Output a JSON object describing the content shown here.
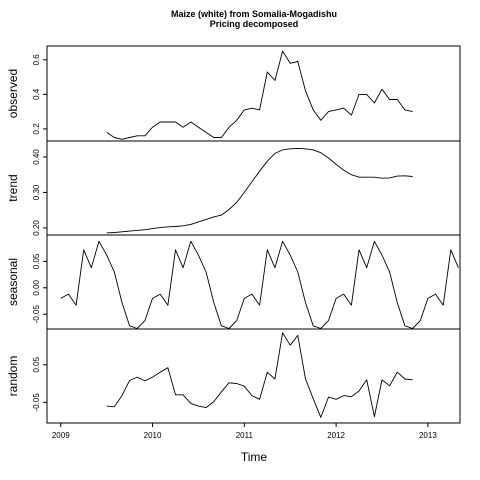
{
  "title_line1": "Maize (white) from Somalia-Mogadishu",
  "title_line2": "Pricing decomposed",
  "xlabel": "Time",
  "chart_data": {
    "type": "line",
    "title": "Maize (white) from Somalia-Mogadishu\nPricing decomposed",
    "xlabel": "Time",
    "xlim": [
      2008.85,
      2013.35
    ],
    "xticks": [
      2009,
      2010,
      2011,
      2012,
      2013
    ],
    "xtick_labels": [
      "2009",
      "2010",
      "2011",
      "2012",
      "2013"
    ],
    "grid": false,
    "panels": [
      {
        "name": "observed",
        "ylabel": "observed",
        "ylim": [
          0.13,
          0.68
        ],
        "yticks": [
          0.2,
          0.4,
          0.6
        ],
        "ytick_labels": [
          "0.2",
          "0.4",
          "0.6"
        ],
        "x": [
          2009.5,
          2009.583,
          2009.667,
          2009.75,
          2009.833,
          2009.917,
          2010.0,
          2010.083,
          2010.167,
          2010.25,
          2010.333,
          2010.417,
          2010.5,
          2010.583,
          2010.667,
          2010.75,
          2010.833,
          2010.917,
          2011.0,
          2011.083,
          2011.167,
          2011.25,
          2011.333,
          2011.417,
          2011.5,
          2011.583,
          2011.667,
          2011.75,
          2011.833,
          2011.917,
          2012.0,
          2012.083,
          2012.167,
          2012.25,
          2012.333,
          2012.417,
          2012.5,
          2012.583,
          2012.667,
          2012.75,
          2012.833
        ],
        "values": [
          0.18,
          0.15,
          0.14,
          0.15,
          0.16,
          0.16,
          0.21,
          0.24,
          0.24,
          0.24,
          0.21,
          0.24,
          0.21,
          0.18,
          0.15,
          0.15,
          0.21,
          0.25,
          0.31,
          0.32,
          0.31,
          0.53,
          0.48,
          0.65,
          0.58,
          0.59,
          0.42,
          0.31,
          0.25,
          0.3,
          0.31,
          0.32,
          0.28,
          0.4,
          0.4,
          0.35,
          0.43,
          0.37,
          0.37,
          0.31,
          0.3
        ]
      },
      {
        "name": "trend",
        "ylabel": "trend",
        "ylim": [
          0.18,
          0.445
        ],
        "yticks": [
          0.2,
          0.3,
          0.4
        ],
        "ytick_labels": [
          "0.20",
          "0.30",
          "0.40"
        ],
        "x": [
          2009.5,
          2009.583,
          2009.667,
          2009.75,
          2009.833,
          2009.917,
          2010.0,
          2010.083,
          2010.167,
          2010.25,
          2010.333,
          2010.417,
          2010.5,
          2010.583,
          2010.667,
          2010.75,
          2010.833,
          2010.917,
          2011.0,
          2011.083,
          2011.167,
          2011.25,
          2011.333,
          2011.417,
          2011.5,
          2011.583,
          2011.667,
          2011.75,
          2011.833,
          2011.917,
          2012.0,
          2012.083,
          2012.167,
          2012.25,
          2012.333,
          2012.417,
          2012.5,
          2012.583,
          2012.667,
          2012.75,
          2012.833
        ],
        "values": [
          0.186,
          0.187,
          0.189,
          0.191,
          0.193,
          0.195,
          0.198,
          0.201,
          0.203,
          0.204,
          0.206,
          0.21,
          0.217,
          0.224,
          0.231,
          0.236,
          0.252,
          0.272,
          0.3,
          0.33,
          0.36,
          0.388,
          0.41,
          0.42,
          0.423,
          0.424,
          0.423,
          0.42,
          0.412,
          0.397,
          0.379,
          0.363,
          0.35,
          0.343,
          0.343,
          0.343,
          0.34,
          0.341,
          0.346,
          0.347,
          0.345
        ]
      },
      {
        "name": "seasonal",
        "ylabel": "seasonal",
        "ylim": [
          -0.078,
          0.1
        ],
        "yticks": [
          -0.05,
          0.0,
          0.05
        ],
        "ytick_labels": [
          "-0.05",
          "0.00",
          "0.05"
        ],
        "x": [
          2009.0,
          2009.083,
          2009.167,
          2009.25,
          2009.333,
          2009.417,
          2009.5,
          2009.583,
          2009.667,
          2009.75,
          2009.833,
          2009.917,
          2010.0,
          2010.083,
          2010.167,
          2010.25,
          2010.333,
          2010.417,
          2010.5,
          2010.583,
          2010.667,
          2010.75,
          2010.833,
          2010.917,
          2011.0,
          2011.083,
          2011.167,
          2011.25,
          2011.333,
          2011.417,
          2011.5,
          2011.583,
          2011.667,
          2011.75,
          2011.833,
          2011.917,
          2012.0,
          2012.083,
          2012.167,
          2012.25,
          2012.333,
          2012.417,
          2012.5,
          2012.583,
          2012.667,
          2012.75,
          2012.833,
          2012.917,
          2013.0,
          2013.083,
          2013.167,
          2013.25,
          2013.333
        ],
        "values": [
          -0.02,
          -0.012,
          -0.033,
          0.072,
          0.038,
          0.088,
          0.062,
          0.03,
          -0.028,
          -0.072,
          -0.077,
          -0.062,
          -0.02,
          -0.012,
          -0.033,
          0.072,
          0.038,
          0.088,
          0.062,
          0.03,
          -0.028,
          -0.072,
          -0.077,
          -0.062,
          -0.02,
          -0.012,
          -0.033,
          0.072,
          0.038,
          0.088,
          0.062,
          0.03,
          -0.028,
          -0.072,
          -0.077,
          -0.062,
          -0.02,
          -0.012,
          -0.033,
          0.072,
          0.038,
          0.088,
          0.062,
          0.03,
          -0.028,
          -0.072,
          -0.077,
          -0.062,
          -0.02,
          -0.012,
          -0.033,
          0.072,
          0.038
        ]
      },
      {
        "name": "random",
        "ylabel": "random",
        "ylim": [
          -0.105,
          0.145
        ],
        "yticks": [
          -0.05,
          0.05
        ],
        "ytick_labels": [
          "-0.05",
          "0.05"
        ],
        "x": [
          2009.5,
          2009.583,
          2009.667,
          2009.75,
          2009.833,
          2009.917,
          2010.0,
          2010.083,
          2010.167,
          2010.25,
          2010.333,
          2010.417,
          2010.5,
          2010.583,
          2010.667,
          2010.75,
          2010.833,
          2010.917,
          2011.0,
          2011.083,
          2011.167,
          2011.25,
          2011.333,
          2011.417,
          2011.5,
          2011.583,
          2011.667,
          2011.75,
          2011.833,
          2011.917,
          2012.0,
          2012.083,
          2012.167,
          2012.25,
          2012.333,
          2012.417,
          2012.5,
          2012.583,
          2012.667,
          2012.75,
          2012.833
        ],
        "values": [
          -0.06,
          -0.062,
          -0.032,
          0.008,
          0.017,
          0.007,
          0.017,
          0.03,
          0.042,
          -0.03,
          -0.03,
          -0.053,
          -0.06,
          -0.064,
          -0.048,
          -0.022,
          0.002,
          0.0,
          -0.007,
          -0.032,
          -0.042,
          0.03,
          0.012,
          0.135,
          0.102,
          0.128,
          0.012,
          -0.04,
          -0.09,
          -0.036,
          -0.042,
          -0.032,
          -0.035,
          -0.02,
          0.01,
          -0.088,
          0.01,
          -0.006,
          0.03,
          0.012,
          0.01
        ]
      }
    ]
  }
}
